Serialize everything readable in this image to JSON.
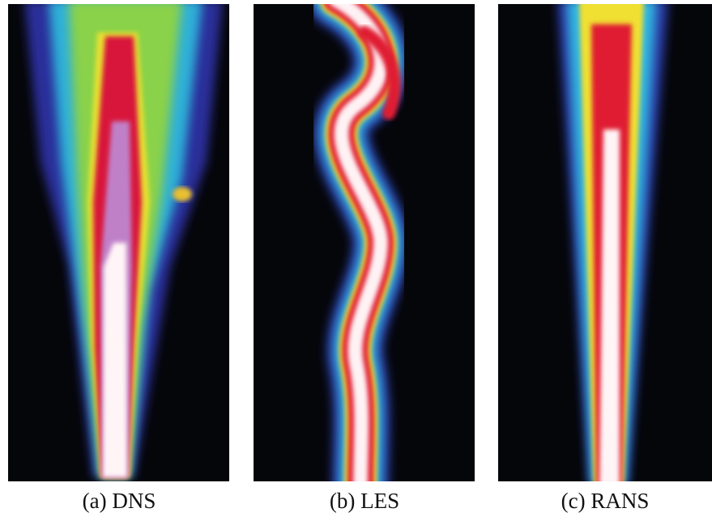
{
  "captions": [
    "(a) DNS",
    "(b) LES",
    "(c) RANS"
  ]
}
